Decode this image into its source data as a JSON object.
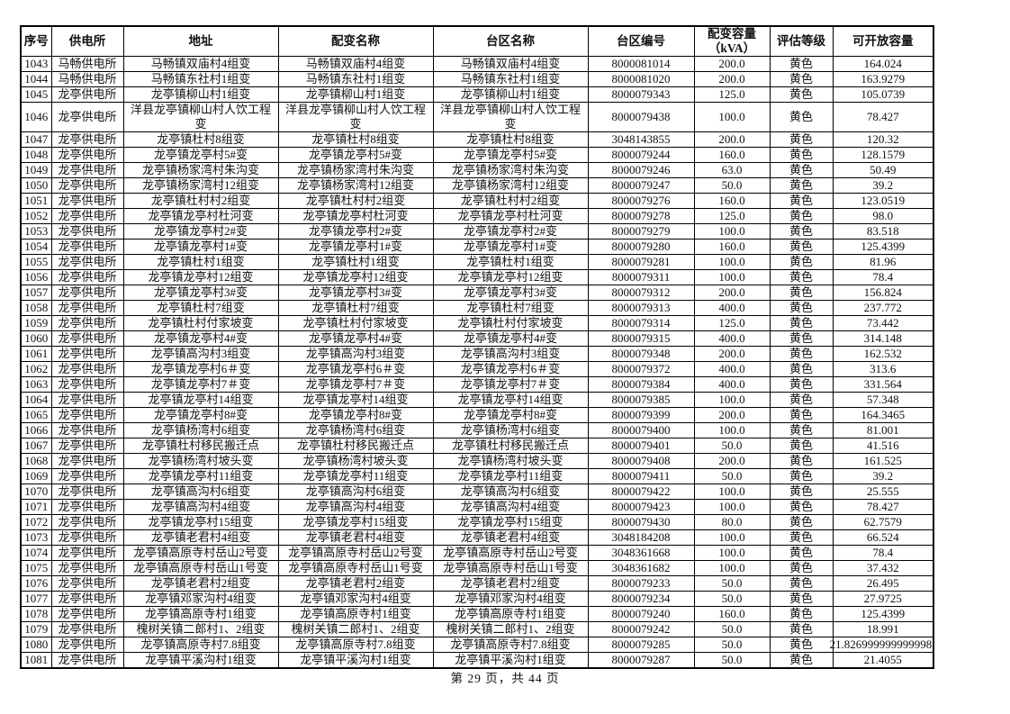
{
  "table": {
    "columns": [
      "序号",
      "供电所",
      "地址",
      "配变名称",
      "台区名称",
      "台区编号",
      "配变容量\n（kVA）",
      "评估等级",
      "可开放容量"
    ],
    "rows": [
      [
        "1043",
        "马畅供电所",
        "马畅镇双庙村4组变",
        "马畅镇双庙村4组变",
        "马畅镇双庙村4组变",
        "8000081014",
        "200.0",
        "黄色",
        "164.024"
      ],
      [
        "1044",
        "马畅供电所",
        "马畅镇东社村1组变",
        "马畅镇东社村1组变",
        "马畅镇东社村1组变",
        "8000081020",
        "200.0",
        "黄色",
        "163.9279"
      ],
      [
        "1045",
        "龙亭供电所",
        "龙亭镇柳山村1组变",
        "龙亭镇柳山村1组变",
        "龙亭镇柳山村1组变",
        "8000079343",
        "125.0",
        "黄色",
        "105.0739"
      ],
      [
        "1046",
        "龙亭供电所",
        "洋县龙亭镇柳山村人饮工程变",
        "洋县龙亭镇柳山村人饮工程变",
        "洋县龙亭镇柳山村人饮工程变",
        "8000079438",
        "100.0",
        "黄色",
        "78.427"
      ],
      [
        "1047",
        "龙亭供电所",
        "龙亭镇杜村8组变",
        "龙亭镇杜村8组变",
        "龙亭镇杜村8组变",
        "3048143855",
        "200.0",
        "黄色",
        "120.32"
      ],
      [
        "1048",
        "龙亭供电所",
        "龙亭镇龙亭村5#变",
        "龙亭镇龙亭村5#变",
        "龙亭镇龙亭村5#变",
        "8000079244",
        "160.0",
        "黄色",
        "128.1579"
      ],
      [
        "1049",
        "龙亭供电所",
        "龙亭镇杨家湾村朱沟变",
        "龙亭镇杨家湾村朱沟变",
        "龙亭镇杨家湾村朱沟变",
        "8000079246",
        "63.0",
        "黄色",
        "50.49"
      ],
      [
        "1050",
        "龙亭供电所",
        "龙亭镇杨家湾村12组变",
        "龙亭镇杨家湾村12组变",
        "龙亭镇杨家湾村12组变",
        "8000079247",
        "50.0",
        "黄色",
        "39.2"
      ],
      [
        "1051",
        "龙亭供电所",
        "龙亭镇杜村村2组变",
        "龙亭镇杜村村2组变",
        "龙亭镇杜村村2组变",
        "8000079276",
        "160.0",
        "黄色",
        "123.0519"
      ],
      [
        "1052",
        "龙亭供电所",
        "龙亭镇龙亭村杜河变",
        "龙亭镇龙亭村杜河变",
        "龙亭镇龙亭村杜河变",
        "8000079278",
        "125.0",
        "黄色",
        "98.0"
      ],
      [
        "1053",
        "龙亭供电所",
        "龙亭镇龙亭村2#变",
        "龙亭镇龙亭村2#变",
        "龙亭镇龙亭村2#变",
        "8000079279",
        "100.0",
        "黄色",
        "83.518"
      ],
      [
        "1054",
        "龙亭供电所",
        "龙亭镇龙亭村1#变",
        "龙亭镇龙亭村1#变",
        "龙亭镇龙亭村1#变",
        "8000079280",
        "160.0",
        "黄色",
        "125.4399"
      ],
      [
        "1055",
        "龙亭供电所",
        "龙亭镇杜村1组变",
        "龙亭镇杜村1组变",
        "龙亭镇杜村1组变",
        "8000079281",
        "100.0",
        "黄色",
        "81.96"
      ],
      [
        "1056",
        "龙亭供电所",
        "龙亭镇龙亭村12组变",
        "龙亭镇龙亭村12组变",
        "龙亭镇龙亭村12组变",
        "8000079311",
        "100.0",
        "黄色",
        "78.4"
      ],
      [
        "1057",
        "龙亭供电所",
        "龙亭镇龙亭村3#变",
        "龙亭镇龙亭村3#变",
        "龙亭镇龙亭村3#变",
        "8000079312",
        "200.0",
        "黄色",
        "156.824"
      ],
      [
        "1058",
        "龙亭供电所",
        "龙亭镇杜村7组变",
        "龙亭镇杜村7组变",
        "龙亭镇杜村7组变",
        "8000079313",
        "400.0",
        "黄色",
        "237.772"
      ],
      [
        "1059",
        "龙亭供电所",
        "龙亭镇杜村付家坡变",
        "龙亭镇杜村付家坡变",
        "龙亭镇杜村付家坡变",
        "8000079314",
        "125.0",
        "黄色",
        "73.442"
      ],
      [
        "1060",
        "龙亭供电所",
        "龙亭镇龙亭村4#变",
        "龙亭镇龙亭村4#变",
        "龙亭镇龙亭村4#变",
        "8000079315",
        "400.0",
        "黄色",
        "314.148"
      ],
      [
        "1061",
        "龙亭供电所",
        "龙亭镇高沟村3组变",
        "龙亭镇高沟村3组变",
        "龙亭镇高沟村3组变",
        "8000079348",
        "200.0",
        "黄色",
        "162.532"
      ],
      [
        "1062",
        "龙亭供电所",
        "龙亭镇龙亭村6＃变",
        "龙亭镇龙亭村6＃变",
        "龙亭镇龙亭村6＃变",
        "8000079372",
        "400.0",
        "黄色",
        "313.6"
      ],
      [
        "1063",
        "龙亭供电所",
        "龙亭镇龙亭村7＃变",
        "龙亭镇龙亭村7＃变",
        "龙亭镇龙亭村7＃变",
        "8000079384",
        "400.0",
        "黄色",
        "331.564"
      ],
      [
        "1064",
        "龙亭供电所",
        "龙亭镇龙亭村14组变",
        "龙亭镇龙亭村14组变",
        "龙亭镇龙亭村14组变",
        "8000079385",
        "100.0",
        "黄色",
        "57.348"
      ],
      [
        "1065",
        "龙亭供电所",
        "龙亭镇龙亭村8#变",
        "龙亭镇龙亭村8#变",
        "龙亭镇龙亭村8#变",
        "8000079399",
        "200.0",
        "黄色",
        "164.3465"
      ],
      [
        "1066",
        "龙亭供电所",
        "龙亭镇杨湾村6组变",
        "龙亭镇杨湾村6组变",
        "龙亭镇杨湾村6组变",
        "8000079400",
        "100.0",
        "黄色",
        "81.001"
      ],
      [
        "1067",
        "龙亭供电所",
        "龙亭镇杜村移民搬迁点",
        "龙亭镇杜村移民搬迁点",
        "龙亭镇杜村移民搬迁点",
        "8000079401",
        "50.0",
        "黄色",
        "41.516"
      ],
      [
        "1068",
        "龙亭供电所",
        "龙亭镇杨湾村坡头变",
        "龙亭镇杨湾村坡头变",
        "龙亭镇杨湾村坡头变",
        "8000079408",
        "200.0",
        "黄色",
        "161.525"
      ],
      [
        "1069",
        "龙亭供电所",
        "龙亭镇龙亭村11组变",
        "龙亭镇龙亭村11组变",
        "龙亭镇龙亭村11组变",
        "8000079411",
        "50.0",
        "黄色",
        "39.2"
      ],
      [
        "1070",
        "龙亭供电所",
        "龙亭镇高沟村6组变",
        "龙亭镇高沟村6组变",
        "龙亭镇高沟村6组变",
        "8000079422",
        "100.0",
        "黄色",
        "25.555"
      ],
      [
        "1071",
        "龙亭供电所",
        "龙亭镇高沟村4组变",
        "龙亭镇高沟村4组变",
        "龙亭镇高沟村4组变",
        "8000079423",
        "100.0",
        "黄色",
        "78.427"
      ],
      [
        "1072",
        "龙亭供电所",
        "龙亭镇龙亭村15组变",
        "龙亭镇龙亭村15组变",
        "龙亭镇龙亭村15组变",
        "8000079430",
        "80.0",
        "黄色",
        "62.7579"
      ],
      [
        "1073",
        "龙亭供电所",
        "龙亭镇老君村4组变",
        "龙亭镇老君村4组变",
        "龙亭镇老君村4组变",
        "3048184208",
        "100.0",
        "黄色",
        "66.524"
      ],
      [
        "1074",
        "龙亭供电所",
        "龙亭镇高原寺村岳山2号变",
        "龙亭镇高原寺村岳山2号变",
        "龙亭镇高原寺村岳山2号变",
        "3048361668",
        "100.0",
        "黄色",
        "78.4"
      ],
      [
        "1075",
        "龙亭供电所",
        "龙亭镇高原寺村岳山1号变",
        "龙亭镇高原寺村岳山1号变",
        "龙亭镇高原寺村岳山1号变",
        "3048361682",
        "100.0",
        "黄色",
        "37.432"
      ],
      [
        "1076",
        "龙亭供电所",
        "龙亭镇老君村2组变",
        "龙亭镇老君村2组变",
        "龙亭镇老君村2组变",
        "8000079233",
        "50.0",
        "黄色",
        "26.495"
      ],
      [
        "1077",
        "龙亭供电所",
        "龙亭镇邓家沟村4组变",
        "龙亭镇邓家沟村4组变",
        "龙亭镇邓家沟村4组变",
        "8000079234",
        "50.0",
        "黄色",
        "27.9725"
      ],
      [
        "1078",
        "龙亭供电所",
        "龙亭镇高原寺村1组变",
        "龙亭镇高原寺村1组变",
        "龙亭镇高原寺村1组变",
        "8000079240",
        "160.0",
        "黄色",
        "125.4399"
      ],
      [
        "1079",
        "龙亭供电所",
        "槐树关镇二郎村1、2组变",
        "槐树关镇二郎村1、2组变",
        "槐树关镇二郎村1、2组变",
        "8000079242",
        "50.0",
        "黄色",
        "18.991"
      ],
      [
        "1080",
        "龙亭供电所",
        "龙亭镇高原寺村7.8组变",
        "龙亭镇高原寺村7.8组变",
        "龙亭镇高原寺村7.8组变",
        "8000079285",
        "50.0",
        "黄色",
        "21.826999999999998"
      ],
      [
        "1081",
        "龙亭供电所",
        "龙亭镇平溪沟村1组变",
        "龙亭镇平溪沟村1组变",
        "龙亭镇平溪沟村1组变",
        "8000079287",
        "50.0",
        "黄色",
        "21.4055"
      ]
    ]
  },
  "footer": {
    "page_text": "第 29 页，共 44 页"
  },
  "colors": {
    "border": "#000000",
    "text": "#111111",
    "background": "#ffffff",
    "grade_label_meaning_yellow": "黄色"
  }
}
